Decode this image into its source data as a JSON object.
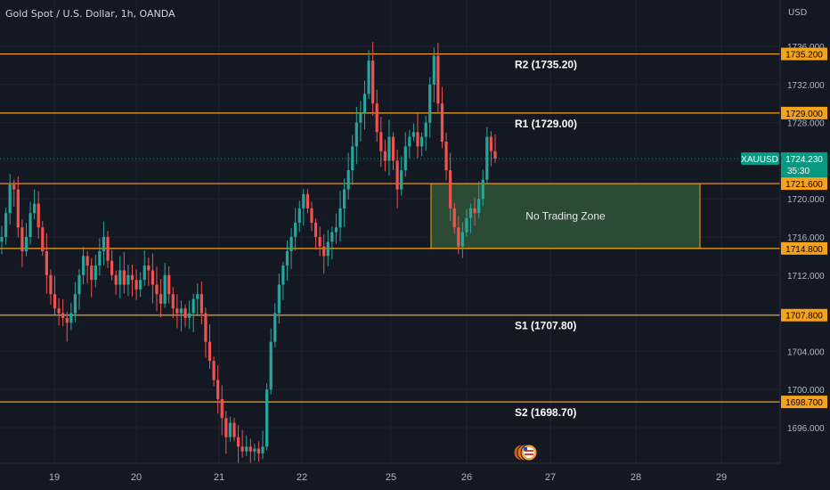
{
  "header": {
    "title": "Gold Spot / U.S. Dollar, 1h, OANDA",
    "currency": "USD"
  },
  "price_tag": {
    "symbol": "XAUUSD",
    "value": "1724.230",
    "countdown": "35:30"
  },
  "zone": {
    "label": "No Trading Zone",
    "top": 1721.6,
    "bottom": 1714.8,
    "x_start": "25 12:00",
    "x_end": "28 18:00",
    "fill": "#2c4b35",
    "stroke": "#f7a21b"
  },
  "colors": {
    "background": "#141823",
    "up": "#26a69a",
    "down": "#ef5350",
    "level_line": "#f7a21b",
    "price_tag": "#089981",
    "grid": "#1e2230",
    "axis_text": "#b2b5be"
  },
  "chart_data": {
    "type": "candlestick",
    "title": "Gold Spot / U.S. Dollar, 1h, OANDA",
    "ylim": [
      1693,
      1738
    ],
    "y_ticks": [
      "1696.000",
      "1700.000",
      "1704.000",
      "1708.000",
      "1712.000",
      "1716.000",
      "1720.000",
      "1724.000",
      "1728.000",
      "1732.000",
      "1736.000"
    ],
    "x_ticks": [
      "19",
      "20",
      "21",
      "22",
      "25",
      "26",
      "27",
      "28",
      "29"
    ],
    "grid": true,
    "levels": [
      {
        "name": "R2",
        "value": 1735.2,
        "label": "R2 (1735.20)",
        "tag": "1735.200"
      },
      {
        "name": "R1",
        "value": 1729.0,
        "label": "R1 (1729.00)",
        "tag": "1729.000"
      },
      {
        "name": "upper",
        "value": 1721.6,
        "label": "",
        "tag": "1721.600"
      },
      {
        "name": "lower",
        "value": 1714.8,
        "label": "",
        "tag": "1714.800"
      },
      {
        "name": "S1",
        "value": 1707.8,
        "label": "S1 (1707.80)",
        "tag": "1707.800"
      },
      {
        "name": "S2",
        "value": 1698.7,
        "label": "S2 (1698.70)",
        "tag": "1698.700"
      }
    ],
    "last_price": 1724.23,
    "close_path": [
      1716.0,
      1718.5,
      1721.5,
      1721.0,
      1717.0,
      1714.5,
      1716.0,
      1718.5,
      1719.5,
      1717.0,
      1714.5,
      1712.0,
      1710.0,
      1708.5,
      1708.0,
      1707.5,
      1707.0,
      1708.0,
      1710.0,
      1712.0,
      1714.0,
      1713.0,
      1711.5,
      1713.0,
      1714.5,
      1716.0,
      1713.5,
      1712.0,
      1711.0,
      1712.5,
      1711.0,
      1712.0,
      1711.5,
      1710.5,
      1711.5,
      1713.0,
      1712.5,
      1711.0,
      1710.0,
      1709.0,
      1712.0,
      1710.0,
      1708.5,
      1708.0,
      1708.5,
      1707.5,
      1708.0,
      1709.5,
      1710.0,
      1708.0,
      1705.0,
      1703.0,
      1701.0,
      1699.0,
      1697.0,
      1695.0,
      1696.5,
      1695.0,
      1694.0,
      1693.5,
      1694.0,
      1693.5,
      1693.8,
      1693.3,
      1694.0,
      1700.0,
      1705.0,
      1708.0,
      1711.0,
      1713.0,
      1714.5,
      1716.0,
      1717.5,
      1719.0,
      1720.5,
      1719.0,
      1717.5,
      1716.0,
      1715.0,
      1714.0,
      1715.5,
      1716.5,
      1717.0,
      1719.0,
      1721.0,
      1723.0,
      1725.5,
      1728.0,
      1729.0,
      1731.0,
      1734.5,
      1730.0,
      1727.0,
      1725.0,
      1724.0,
      1726.5,
      1724.0,
      1721.0,
      1723.0,
      1725.5,
      1726.5,
      1727.0,
      1725.5,
      1726.5,
      1728.0,
      1732.0,
      1735.0,
      1730.0,
      1726.0,
      1723.0,
      1719.0,
      1717.0,
      1715.0,
      1716.5,
      1718.0,
      1719.0,
      1718.5,
      1720.0,
      1722.0,
      1726.5,
      1725.0,
      1724.23
    ]
  }
}
